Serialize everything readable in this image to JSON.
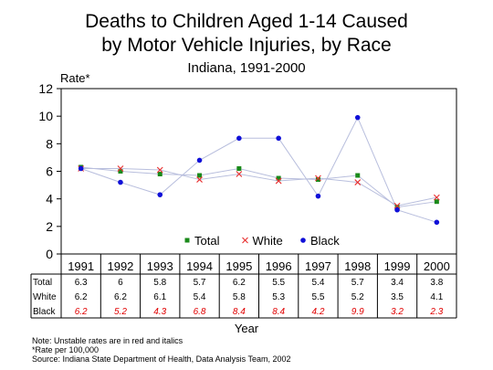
{
  "title_line1": "Deaths to Children Aged 1-14 Caused",
  "title_line2": "by Motor Vehicle Injuries, by Race",
  "subtitle": "Indiana, 1991-2000",
  "chart_data": {
    "type": "line",
    "title": "Deaths to Children Aged 1-14 Caused by Motor Vehicle Injuries, by Race",
    "subtitle": "Indiana, 1991-2000",
    "xlabel": "Year",
    "ylabel": "Rate*",
    "ylim": [
      0,
      12
    ],
    "yticks": [
      0,
      2,
      4,
      6,
      8,
      10,
      12
    ],
    "categories": [
      "1991",
      "1992",
      "1993",
      "1994",
      "1995",
      "1996",
      "1997",
      "1998",
      "1999",
      "2000"
    ],
    "series": [
      {
        "name": "Total",
        "values": [
          6.3,
          6,
          5.8,
          5.7,
          6.2,
          5.5,
          5.4,
          5.7,
          3.4,
          3.8
        ],
        "labels": [
          "6.3",
          "6",
          "5.8",
          "5.7",
          "6.2",
          "5.5",
          "5.4",
          "5.7",
          "3.4",
          "3.8"
        ],
        "color": "#1a8a1a",
        "marker": "square"
      },
      {
        "name": "White",
        "values": [
          6.2,
          6.2,
          6.1,
          5.4,
          5.8,
          5.3,
          5.5,
          5.2,
          3.5,
          4.1
        ],
        "labels": [
          "6.2",
          "6.2",
          "6.1",
          "5.4",
          "5.8",
          "5.3",
          "5.5",
          "5.2",
          "3.5",
          "4.1"
        ],
        "color": "#e83030",
        "marker": "x"
      },
      {
        "name": "Black",
        "values": [
          6.2,
          5.2,
          4.3,
          6.8,
          8.4,
          8.4,
          4.2,
          9.9,
          3.2,
          2.3
        ],
        "labels": [
          "6.2",
          "5.2",
          "4.3",
          "6.8",
          "8.4",
          "8.4",
          "4.2",
          "9.9",
          "3.2",
          "2.3"
        ],
        "color": "#1010d8",
        "marker": "circle",
        "table_text_color": "#e00000",
        "table_italic": true
      }
    ],
    "legend": "bottom-center, inside plot",
    "grid": false,
    "line_color": "#b8bedd",
    "background": "#ffffff"
  },
  "notes": {
    "line1": "Note:  Unstable rates are in red and italics",
    "line2": "*Rate per 100,000",
    "line3": "Source:  Indiana State Department of Health, Data Analysis Team, 2002"
  }
}
